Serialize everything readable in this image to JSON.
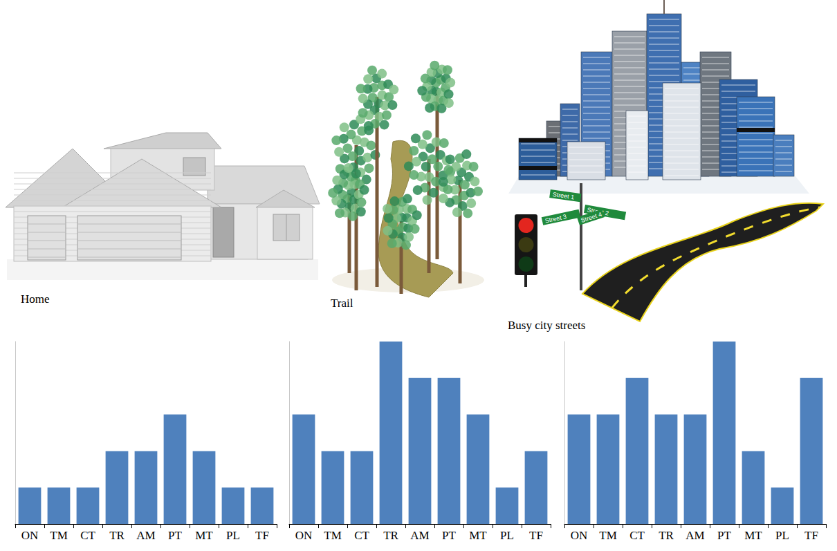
{
  "illustrations": {
    "labels": [
      "Home",
      "Trail",
      "Busy city streets"
    ],
    "street_signs": [
      "Street 1",
      "Street 2",
      "Street 3",
      "Street 4"
    ]
  },
  "chart_data": [
    {
      "type": "bar",
      "categories": [
        "ON",
        "TM",
        "CT",
        "TR",
        "AM",
        "PT",
        "MT",
        "PL",
        "TF"
      ],
      "values": [
        1,
        1,
        1,
        2,
        2,
        3,
        2,
        1,
        1
      ],
      "color": "#4f81bd",
      "ylim": [
        0,
        5
      ],
      "grid": false,
      "tick_labels": "x"
    },
    {
      "type": "bar",
      "categories": [
        "ON",
        "TM",
        "CT",
        "TR",
        "AM",
        "PT",
        "MT",
        "PL",
        "TF"
      ],
      "values": [
        3,
        2,
        2,
        5,
        4,
        4,
        3,
        1,
        2
      ],
      "color": "#4f81bd",
      "ylim": [
        0,
        5
      ],
      "grid": false,
      "tick_labels": "x"
    },
    {
      "type": "bar",
      "categories": [
        "ON",
        "TM",
        "CT",
        "TR",
        "AM",
        "PT",
        "MT",
        "PL",
        "TF"
      ],
      "values": [
        3,
        3,
        4,
        3,
        3,
        5,
        2,
        1,
        4
      ],
      "color": "#4f81bd",
      "ylim": [
        0,
        5
      ],
      "grid": false,
      "tick_labels": "x"
    }
  ]
}
